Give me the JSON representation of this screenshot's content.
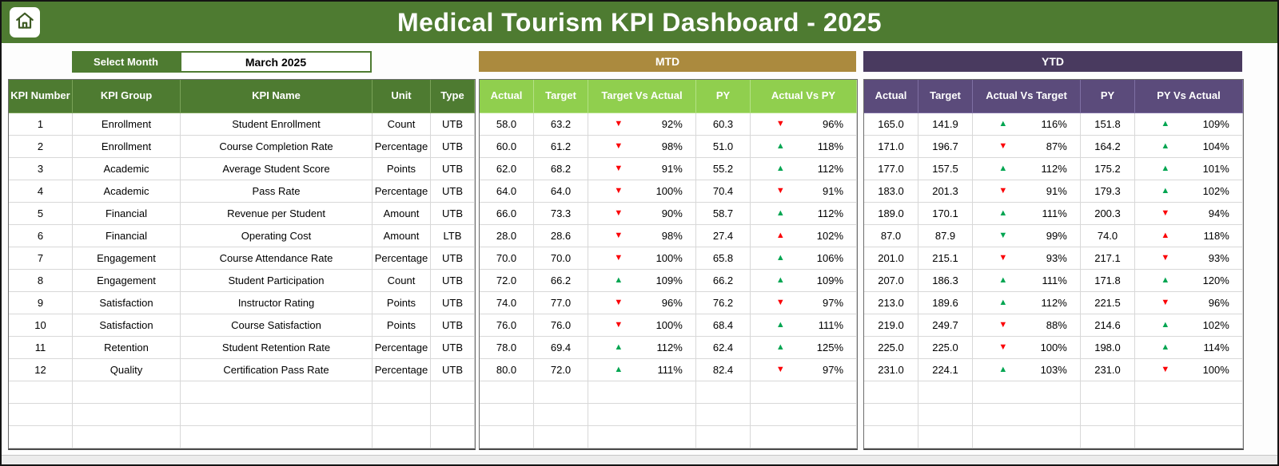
{
  "header": {
    "title": "Medical Tourism KPI Dashboard - 2025"
  },
  "controls": {
    "select_month_label": "Select Month",
    "selected_month": "March 2025"
  },
  "sections": {
    "mtd": {
      "label": "MTD",
      "columns": [
        "Actual",
        "Target",
        "Target Vs Actual",
        "PY",
        "Actual Vs PY"
      ]
    },
    "ytd": {
      "label": "YTD",
      "columns": [
        "Actual",
        "Target",
        "Actual Vs Target",
        "PY",
        "PY Vs Actual"
      ]
    }
  },
  "colors": {
    "header_green": "#4e7b31",
    "mtd_gold": "#ab8a3e",
    "mtd_subheader_green": "#90cf4e",
    "ytd_dark_purple": "#493a5f",
    "ytd_subheader_purple": "#5b4b7b",
    "arrow_up_green": "#00a551",
    "arrow_down_red": "#fb0207"
  },
  "icons": {
    "home": "home-icon",
    "up_arrow": "up-arrow-icon",
    "down_arrow": "down-arrow-icon"
  },
  "table": {
    "info_columns": [
      "KPI Number",
      "KPI Group",
      "KPI Name",
      "Unit",
      "Type"
    ],
    "empty_rows": 3,
    "rows": [
      {
        "num": "1",
        "group": "Enrollment",
        "name": "Student Enrollment",
        "unit": "Count",
        "type": "UTB",
        "mtd": {
          "actual": "58.0",
          "target": "63.2",
          "tva": {
            "dir": "down",
            "color": "red",
            "pct": "92%"
          },
          "py": "60.3",
          "avp": {
            "dir": "down",
            "color": "red",
            "pct": "96%"
          }
        },
        "ytd": {
          "actual": "165.0",
          "target": "141.9",
          "avt": {
            "dir": "up",
            "color": "green",
            "pct": "116%"
          },
          "py": "151.8",
          "pva": {
            "dir": "up",
            "color": "green",
            "pct": "109%"
          }
        }
      },
      {
        "num": "2",
        "group": "Enrollment",
        "name": "Course Completion Rate",
        "unit": "Percentage",
        "type": "UTB",
        "mtd": {
          "actual": "60.0",
          "target": "61.2",
          "tva": {
            "dir": "down",
            "color": "red",
            "pct": "98%"
          },
          "py": "51.0",
          "avp": {
            "dir": "up",
            "color": "green",
            "pct": "118%"
          }
        },
        "ytd": {
          "actual": "171.0",
          "target": "196.7",
          "avt": {
            "dir": "down",
            "color": "red",
            "pct": "87%"
          },
          "py": "164.2",
          "pva": {
            "dir": "up",
            "color": "green",
            "pct": "104%"
          }
        }
      },
      {
        "num": "3",
        "group": "Academic",
        "name": "Average Student Score",
        "unit": "Points",
        "type": "UTB",
        "mtd": {
          "actual": "62.0",
          "target": "68.2",
          "tva": {
            "dir": "down",
            "color": "red",
            "pct": "91%"
          },
          "py": "55.2",
          "avp": {
            "dir": "up",
            "color": "green",
            "pct": "112%"
          }
        },
        "ytd": {
          "actual": "177.0",
          "target": "157.5",
          "avt": {
            "dir": "up",
            "color": "green",
            "pct": "112%"
          },
          "py": "175.2",
          "pva": {
            "dir": "up",
            "color": "green",
            "pct": "101%"
          }
        }
      },
      {
        "num": "4",
        "group": "Academic",
        "name": "Pass Rate",
        "unit": "Percentage",
        "type": "UTB",
        "mtd": {
          "actual": "64.0",
          "target": "64.0",
          "tva": {
            "dir": "down",
            "color": "red",
            "pct": "100%"
          },
          "py": "70.4",
          "avp": {
            "dir": "down",
            "color": "red",
            "pct": "91%"
          }
        },
        "ytd": {
          "actual": "183.0",
          "target": "201.3",
          "avt": {
            "dir": "down",
            "color": "red",
            "pct": "91%"
          },
          "py": "179.3",
          "pva": {
            "dir": "up",
            "color": "green",
            "pct": "102%"
          }
        }
      },
      {
        "num": "5",
        "group": "Financial",
        "name": "Revenue per Student",
        "unit": "Amount",
        "type": "UTB",
        "mtd": {
          "actual": "66.0",
          "target": "73.3",
          "tva": {
            "dir": "down",
            "color": "red",
            "pct": "90%"
          },
          "py": "58.7",
          "avp": {
            "dir": "up",
            "color": "green",
            "pct": "112%"
          }
        },
        "ytd": {
          "actual": "189.0",
          "target": "170.1",
          "avt": {
            "dir": "up",
            "color": "green",
            "pct": "111%"
          },
          "py": "200.3",
          "pva": {
            "dir": "down",
            "color": "red",
            "pct": "94%"
          }
        }
      },
      {
        "num": "6",
        "group": "Financial",
        "name": "Operating Cost",
        "unit": "Amount",
        "type": "LTB",
        "mtd": {
          "actual": "28.0",
          "target": "28.6",
          "tva": {
            "dir": "down",
            "color": "red",
            "pct": "98%"
          },
          "py": "27.4",
          "avp": {
            "dir": "up",
            "color": "red",
            "pct": "102%"
          }
        },
        "ytd": {
          "actual": "87.0",
          "target": "87.9",
          "avt": {
            "dir": "down",
            "color": "green",
            "pct": "99%"
          },
          "py": "74.0",
          "pva": {
            "dir": "up",
            "color": "red",
            "pct": "118%"
          }
        }
      },
      {
        "num": "7",
        "group": "Engagement",
        "name": "Course Attendance Rate",
        "unit": "Percentage",
        "type": "UTB",
        "mtd": {
          "actual": "70.0",
          "target": "70.0",
          "tva": {
            "dir": "down",
            "color": "red",
            "pct": "100%"
          },
          "py": "65.8",
          "avp": {
            "dir": "up",
            "color": "green",
            "pct": "106%"
          }
        },
        "ytd": {
          "actual": "201.0",
          "target": "215.1",
          "avt": {
            "dir": "down",
            "color": "red",
            "pct": "93%"
          },
          "py": "217.1",
          "pva": {
            "dir": "down",
            "color": "red",
            "pct": "93%"
          }
        }
      },
      {
        "num": "8",
        "group": "Engagement",
        "name": "Student Participation",
        "unit": "Count",
        "type": "UTB",
        "mtd": {
          "actual": "72.0",
          "target": "66.2",
          "tva": {
            "dir": "up",
            "color": "green",
            "pct": "109%"
          },
          "py": "66.2",
          "avp": {
            "dir": "up",
            "color": "green",
            "pct": "109%"
          }
        },
        "ytd": {
          "actual": "207.0",
          "target": "186.3",
          "avt": {
            "dir": "up",
            "color": "green",
            "pct": "111%"
          },
          "py": "171.8",
          "pva": {
            "dir": "up",
            "color": "green",
            "pct": "120%"
          }
        }
      },
      {
        "num": "9",
        "group": "Satisfaction",
        "name": "Instructor Rating",
        "unit": "Points",
        "type": "UTB",
        "mtd": {
          "actual": "74.0",
          "target": "77.0",
          "tva": {
            "dir": "down",
            "color": "red",
            "pct": "96%"
          },
          "py": "76.2",
          "avp": {
            "dir": "down",
            "color": "red",
            "pct": "97%"
          }
        },
        "ytd": {
          "actual": "213.0",
          "target": "189.6",
          "avt": {
            "dir": "up",
            "color": "green",
            "pct": "112%"
          },
          "py": "221.5",
          "pva": {
            "dir": "down",
            "color": "red",
            "pct": "96%"
          }
        }
      },
      {
        "num": "10",
        "group": "Satisfaction",
        "name": "Course Satisfaction",
        "unit": "Points",
        "type": "UTB",
        "mtd": {
          "actual": "76.0",
          "target": "76.0",
          "tva": {
            "dir": "down",
            "color": "red",
            "pct": "100%"
          },
          "py": "68.4",
          "avp": {
            "dir": "up",
            "color": "green",
            "pct": "111%"
          }
        },
        "ytd": {
          "actual": "219.0",
          "target": "249.7",
          "avt": {
            "dir": "down",
            "color": "red",
            "pct": "88%"
          },
          "py": "214.6",
          "pva": {
            "dir": "up",
            "color": "green",
            "pct": "102%"
          }
        }
      },
      {
        "num": "11",
        "group": "Retention",
        "name": "Student Retention Rate",
        "unit": "Percentage",
        "type": "UTB",
        "mtd": {
          "actual": "78.0",
          "target": "69.4",
          "tva": {
            "dir": "up",
            "color": "green",
            "pct": "112%"
          },
          "py": "62.4",
          "avp": {
            "dir": "up",
            "color": "green",
            "pct": "125%"
          }
        },
        "ytd": {
          "actual": "225.0",
          "target": "225.0",
          "avt": {
            "dir": "down",
            "color": "red",
            "pct": "100%"
          },
          "py": "198.0",
          "pva": {
            "dir": "up",
            "color": "green",
            "pct": "114%"
          }
        }
      },
      {
        "num": "12",
        "group": "Quality",
        "name": "Certification Pass Rate",
        "unit": "Percentage",
        "type": "UTB",
        "mtd": {
          "actual": "80.0",
          "target": "72.0",
          "tva": {
            "dir": "up",
            "color": "green",
            "pct": "111%"
          },
          "py": "82.4",
          "avp": {
            "dir": "down",
            "color": "red",
            "pct": "97%"
          }
        },
        "ytd": {
          "actual": "231.0",
          "target": "224.1",
          "avt": {
            "dir": "up",
            "color": "green",
            "pct": "103%"
          },
          "py": "231.0",
          "pva": {
            "dir": "down",
            "color": "red",
            "pct": "100%"
          }
        }
      }
    ]
  }
}
